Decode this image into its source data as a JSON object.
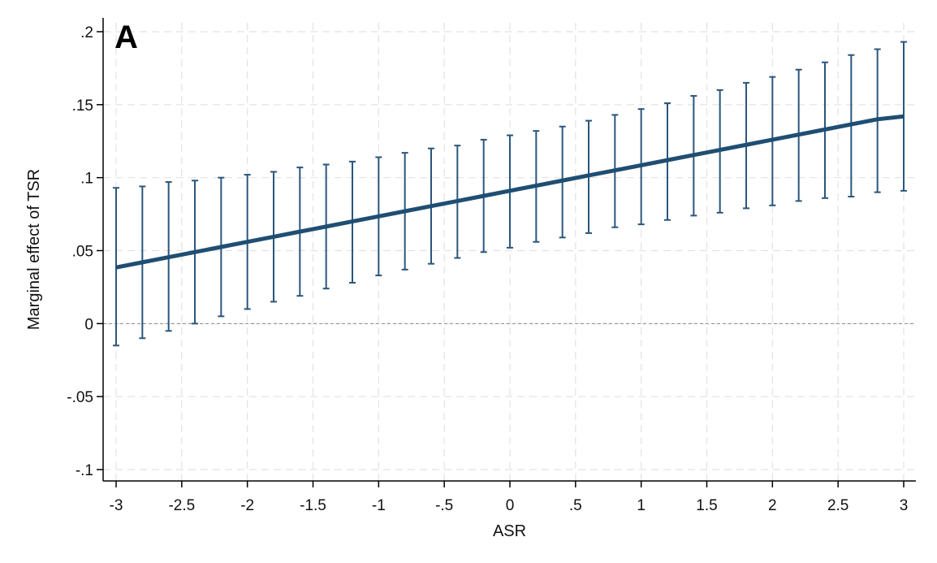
{
  "chart_data": {
    "type": "line",
    "panel_label": "A",
    "title": "",
    "xlabel": "ASR",
    "ylabel": "Marginal effect of TSR",
    "xlim": [
      -3,
      3
    ],
    "ylim": [
      -0.1,
      0.2
    ],
    "x_ticks": [
      {
        "value": -3,
        "label": "-3"
      },
      {
        "value": -2.5,
        "label": "-2.5"
      },
      {
        "value": -2,
        "label": "-2"
      },
      {
        "value": -1.5,
        "label": "-1.5"
      },
      {
        "value": -1,
        "label": "-1"
      },
      {
        "value": -0.5,
        "label": "-.5"
      },
      {
        "value": 0,
        "label": "0"
      },
      {
        "value": 0.5,
        "label": ".5"
      },
      {
        "value": 1,
        "label": "1"
      },
      {
        "value": 1.5,
        "label": "1.5"
      },
      {
        "value": 2,
        "label": "2"
      },
      {
        "value": 2.5,
        "label": "2.5"
      },
      {
        "value": 3,
        "label": "3"
      }
    ],
    "y_ticks": [
      {
        "value": -0.1,
        "label": "-.1"
      },
      {
        "value": -0.05,
        "label": "-.05"
      },
      {
        "value": 0,
        "label": "0"
      },
      {
        "value": 0.05,
        "label": ".05"
      },
      {
        "value": 0.1,
        "label": ".1"
      },
      {
        "value": 0.15,
        "label": ".15"
      },
      {
        "value": 0.2,
        "label": ".2"
      }
    ],
    "grid": true,
    "reference_line_y": 0,
    "x": [
      -3,
      -2.8,
      -2.6,
      -2.4,
      -2.2,
      -2,
      -1.8,
      -1.6,
      -1.4,
      -1.2,
      -1,
      -0.8,
      -0.6,
      -0.4,
      -0.2,
      0,
      0.2,
      0.4,
      0.6,
      0.8,
      1,
      1.2,
      1.4,
      1.6,
      1.8,
      2,
      2.2,
      2.4,
      2.6,
      2.8,
      3
    ],
    "series": [
      {
        "values": [
          0.0385,
          0.042,
          0.0455,
          0.049,
          0.0525,
          0.056,
          0.0595,
          0.063,
          0.0665,
          0.07,
          0.0735,
          0.077,
          0.0805,
          0.084,
          0.0875,
          0.091,
          0.0945,
          0.098,
          0.1015,
          0.105,
          0.1085,
          0.112,
          0.1155,
          0.119,
          0.1225,
          0.126,
          0.1295,
          0.133,
          0.1365,
          0.14,
          0.142
        ],
        "ci_lower": [
          -0.015,
          -0.01,
          -0.005,
          0.0,
          0.005,
          0.01,
          0.015,
          0.019,
          0.024,
          0.028,
          0.033,
          0.037,
          0.041,
          0.045,
          0.049,
          0.052,
          0.056,
          0.059,
          0.062,
          0.066,
          0.068,
          0.071,
          0.074,
          0.076,
          0.079,
          0.081,
          0.084,
          0.086,
          0.087,
          0.09,
          0.091
        ],
        "ci_upper": [
          0.093,
          0.094,
          0.097,
          0.098,
          0.1,
          0.102,
          0.104,
          0.107,
          0.109,
          0.111,
          0.114,
          0.117,
          0.12,
          0.122,
          0.126,
          0.129,
          0.132,
          0.135,
          0.139,
          0.143,
          0.147,
          0.151,
          0.156,
          0.16,
          0.165,
          0.169,
          0.174,
          0.179,
          0.184,
          0.188,
          0.193
        ]
      }
    ],
    "colors": {
      "line": "#1f4e73",
      "errorbar": "#2a567c",
      "grid": "#e2e2e2",
      "reference": "#888888",
      "axis": "#000000"
    }
  }
}
